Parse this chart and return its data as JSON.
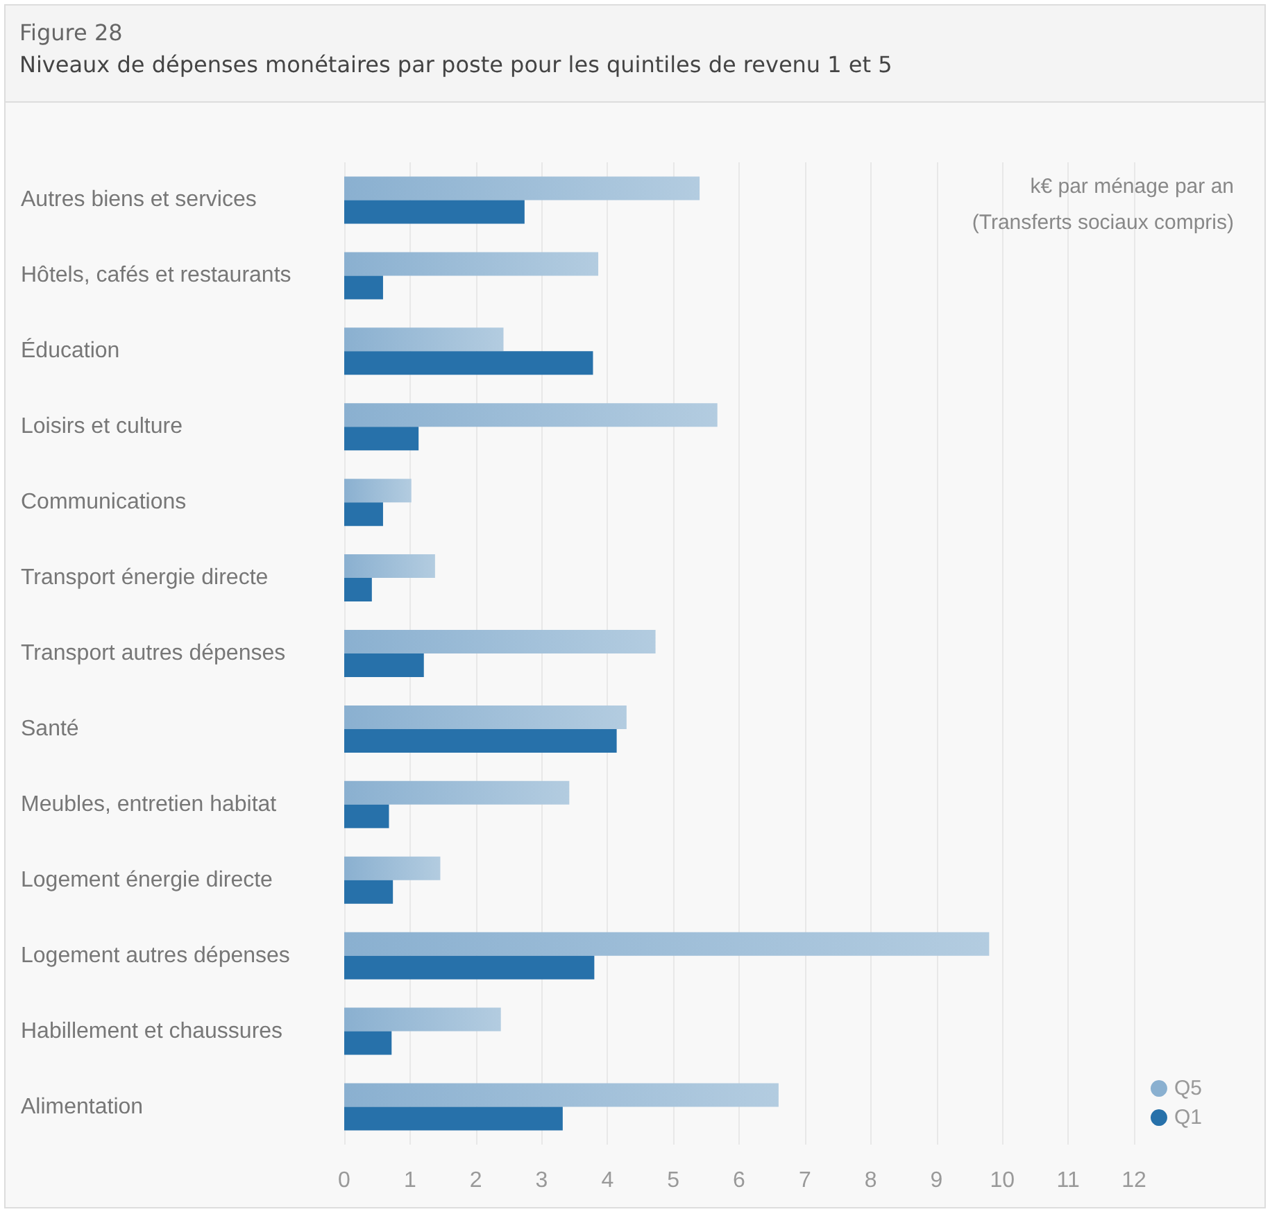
{
  "chart_data": {
    "type": "bar",
    "orientation": "horizontal",
    "title": "Figure 28",
    "subtitle": "Niveaux de dépenses monétaires par poste pour les quintiles de revenu 1 et 5",
    "annotations": [
      "k€ par ménage par an\n(Transferts sociaux compris)"
    ],
    "categories": [
      "Autres biens et services",
      "Hôtels, cafés et restaurants",
      "Éducation",
      "Loisirs et culture",
      "Communications",
      "Transport énergie directe",
      "Transport autres dépenses",
      "Santé",
      "Meubles, entretien habitat",
      "Logement énergie directe",
      "Logement autres dépenses",
      "Habillement et chaussures",
      "Alimentation"
    ],
    "series": [
      {
        "name": "Q5",
        "color": "#8ab0d0",
        "values": [
          5.4,
          3.86,
          2.42,
          5.67,
          1.02,
          1.38,
          4.73,
          4.29,
          3.42,
          1.46,
          9.8,
          2.38,
          6.6
        ]
      },
      {
        "name": "Q1",
        "color": "#2771aa",
        "values": [
          2.74,
          0.59,
          3.78,
          1.13,
          0.59,
          0.42,
          1.21,
          4.14,
          0.68,
          0.74,
          3.8,
          0.72,
          3.32
        ]
      }
    ],
    "xlim": [
      0,
      12
    ],
    "xticks": [
      0,
      1,
      2,
      3,
      4,
      5,
      6,
      7,
      8,
      9,
      10,
      11,
      12
    ],
    "grid": "x",
    "legend": "bottom right"
  }
}
